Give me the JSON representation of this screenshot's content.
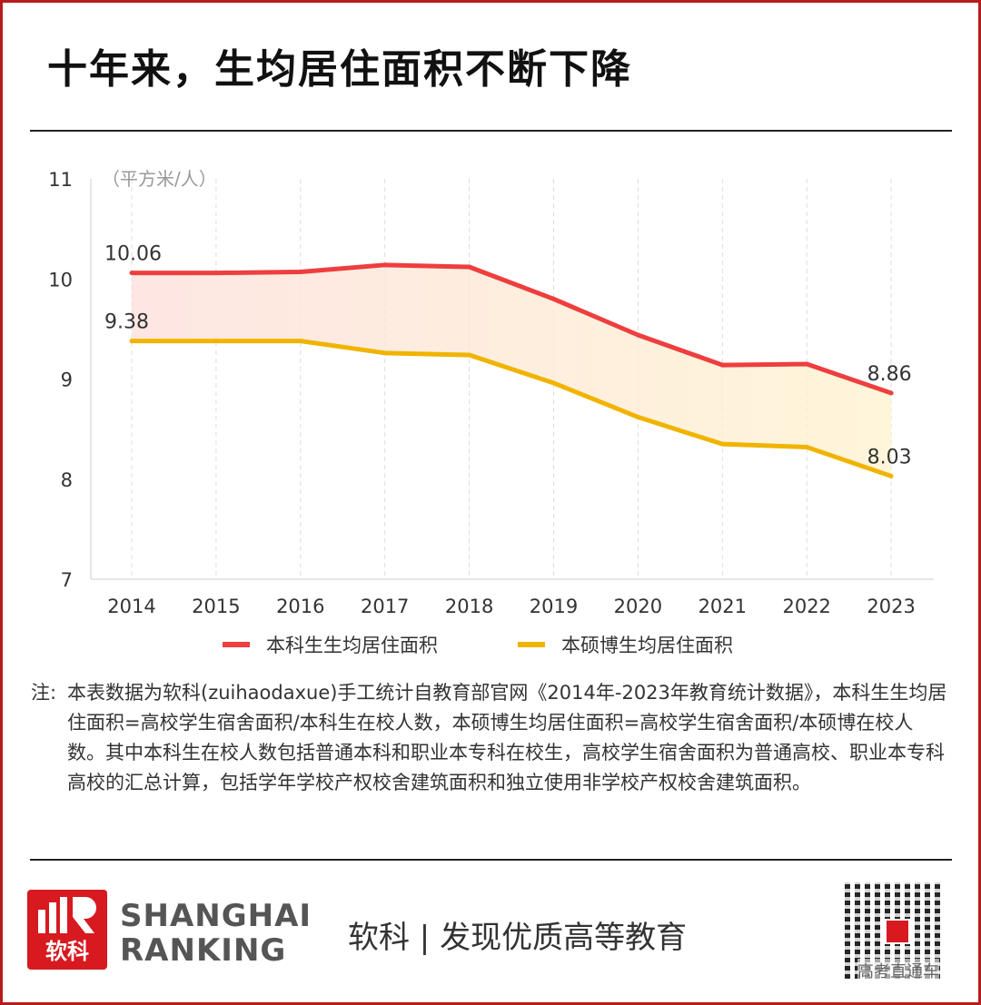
{
  "title": "十年来，生均居住面积不断下降",
  "chart_data": {
    "type": "line",
    "title": "十年来，生均居住面积不断下降",
    "ylabel": "（平方米/人）",
    "xlabel": "",
    "ylim": [
      7,
      11
    ],
    "yticks": [
      7,
      8,
      9,
      10,
      11
    ],
    "categories": [
      "2014",
      "2015",
      "2016",
      "2017",
      "2018",
      "2019",
      "2020",
      "2021",
      "2022",
      "2023"
    ],
    "series": [
      {
        "name": "本科生生均居住面积",
        "color": "#ee3e3e",
        "values": [
          10.06,
          10.06,
          10.07,
          10.14,
          10.12,
          9.8,
          9.44,
          9.14,
          9.15,
          8.86
        ],
        "labels": {
          "0": "10.06",
          "9": "8.86"
        }
      },
      {
        "name": "本硕博生均居住面积",
        "color": "#f0b400",
        "values": [
          9.38,
          9.38,
          9.38,
          9.26,
          9.24,
          8.96,
          8.62,
          8.35,
          8.32,
          8.03
        ],
        "labels": {
          "0": "9.38",
          "9": "8.03"
        }
      }
    ],
    "grid": "vertical dashed",
    "legend": "bottom"
  },
  "note": {
    "label": "注:",
    "text": "本表数据为软科(zuihaodaxue)手工统计自教育部官网《2014年-2023年教育统计数据》，本科生生均居住面积=高校学生宿舍面积/本科生在校人数，本硕博生均居住面积=高校学生宿舍面积/本硕博在校人数。其中本科生在校人数包括普通本科和职业本专科在校生，高校学生宿舍面积为普通高校、职业本专科高校的汇总计算，包括学年学校产权校舍建筑面积和独立使用非学校产权校舍建筑面积。"
  },
  "footer": {
    "brand_line1": "SHANGHAI",
    "brand_line2": "RANKING",
    "logo_text": "软科",
    "slogan": "软科 | 发现优质高等教育",
    "qr_watermark": "高考直通车"
  }
}
